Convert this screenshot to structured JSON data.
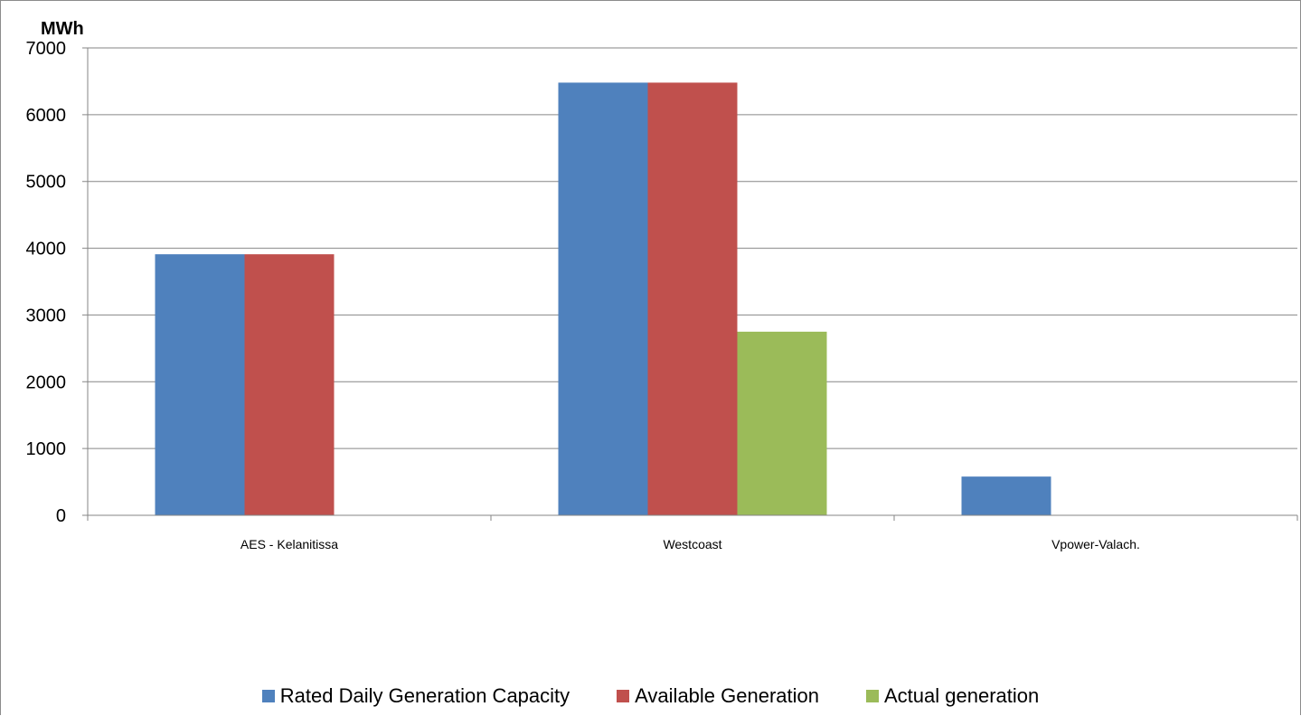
{
  "chart_data": {
    "type": "bar",
    "title": "",
    "unit_label": "MWh",
    "xlabel": "",
    "ylabel": "",
    "ylim": [
      0,
      7000
    ],
    "yticks": [
      0,
      1000,
      2000,
      3000,
      4000,
      5000,
      6000,
      7000
    ],
    "grid": true,
    "legend_position": "bottom",
    "categories": [
      "AES - Kelanitissa",
      "Westcoast",
      "Vpower-Valach."
    ],
    "series": [
      {
        "name": "Rated Daily Generation Capacity",
        "color": "#4f81bd",
        "values": [
          3910,
          6480,
          580
        ]
      },
      {
        "name": "Available Generation",
        "color": "#c0504d",
        "values": [
          3910,
          6480,
          0
        ]
      },
      {
        "name": "Actual generation",
        "color": "#9bbb59",
        "values": [
          0,
          2750,
          0
        ]
      }
    ]
  }
}
